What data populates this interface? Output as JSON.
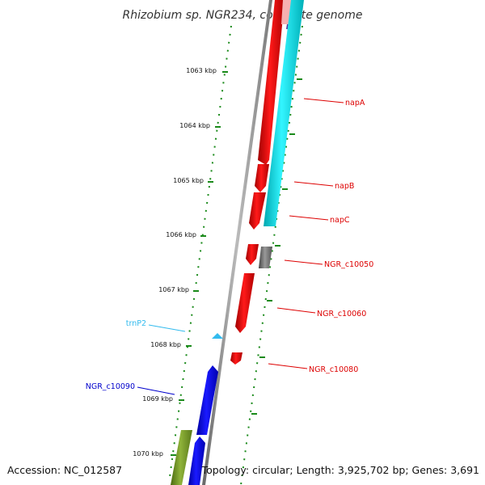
{
  "title": "Rhizobium sp. NGR234, complete genome",
  "footer": {
    "accession": "Accession: NC_012587",
    "summary": "Topology: circular; Length: 3,925,702 bp; Genes: 3,691"
  },
  "scale_ticks": [
    "1063 kbp",
    "1064 kbp",
    "1065 kbp",
    "1066 kbp",
    "1067 kbp",
    "1068 kbp",
    "1069 kbp",
    "1070 kbp"
  ],
  "gene_labels": [
    {
      "name": "napA",
      "color": "#dd0000"
    },
    {
      "name": "napB",
      "color": "#dd0000"
    },
    {
      "name": "napC",
      "color": "#dd0000"
    },
    {
      "name": "NGR_c10050",
      "color": "#dd0000"
    },
    {
      "name": "NGR_c10060",
      "color": "#dd0000"
    },
    {
      "name": "NGR_c10080",
      "color": "#dd0000"
    },
    {
      "name": "trnP2",
      "color": "#33bbee"
    },
    {
      "name": "NGR_c10090",
      "color": "#0000cc"
    }
  ],
  "colors": {
    "cds_forward": "#ee0000",
    "cds_reverse": "#0000ee",
    "rna": "#00e5ee",
    "pseudo": "#777777",
    "other": "#6b8e23",
    "backbone": "#888888",
    "scale": "#1a8a1a"
  }
}
